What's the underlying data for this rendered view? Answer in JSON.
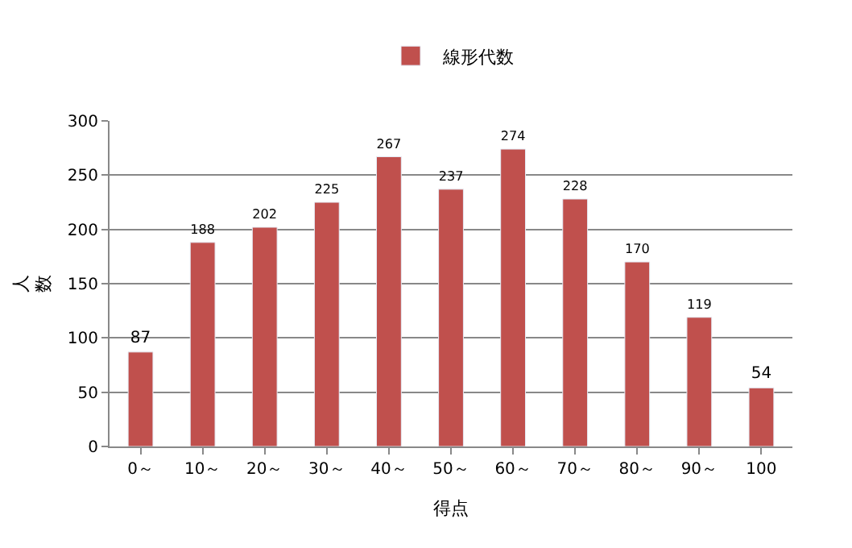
{
  "chart_data": {
    "type": "bar",
    "xlabel": "得点",
    "ylabel": "人数",
    "categories": [
      "0～",
      "10～",
      "20～",
      "30～",
      "40～",
      "50～",
      "60～",
      "70～",
      "80～",
      "90～",
      "100"
    ],
    "series": [
      {
        "name": "線形代数",
        "color": "#c0504d",
        "values": [
          87,
          188,
          202,
          225,
          267,
          237,
          274,
          228,
          170,
          119,
          54
        ]
      }
    ],
    "ylim": [
      0,
      300
    ],
    "yticks": [
      0,
      50,
      100,
      150,
      200,
      250,
      300
    ],
    "grid": "y",
    "legend": "top",
    "data_labels": true
  }
}
